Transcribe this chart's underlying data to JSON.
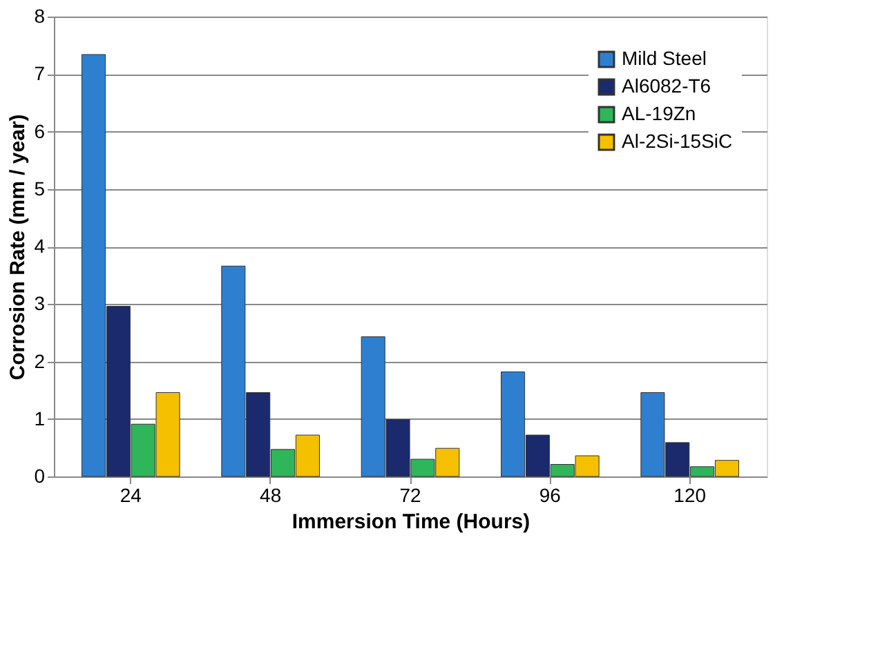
{
  "chart_data": {
    "type": "bar",
    "xlabel": "Immersion Time (Hours)",
    "ylabel": "Corrosion Rate (mm / year)",
    "categories": [
      "24",
      "48",
      "72",
      "96",
      "120"
    ],
    "series": [
      {
        "name": "Mild Steel",
        "color": "#2e7fd0",
        "values": [
          7.34,
          3.66,
          2.43,
          1.82,
          1.46
        ]
      },
      {
        "name": "Al6082-T6",
        "color": "#1a2a6c",
        "values": [
          2.96,
          1.46,
          0.99,
          0.72,
          0.59
        ]
      },
      {
        "name": "AL-19Zn",
        "color": "#2fb55a",
        "values": [
          0.91,
          0.47,
          0.3,
          0.21,
          0.17
        ]
      },
      {
        "name": "Al-2Si-15SiC",
        "color": "#f5c000",
        "values": [
          1.46,
          0.72,
          0.49,
          0.36,
          0.28
        ]
      }
    ],
    "ylim": [
      0,
      8
    ],
    "yticks": [
      0,
      1,
      2,
      3,
      4,
      5,
      6,
      7,
      8
    ],
    "grid": "y",
    "legend": "top right"
  }
}
